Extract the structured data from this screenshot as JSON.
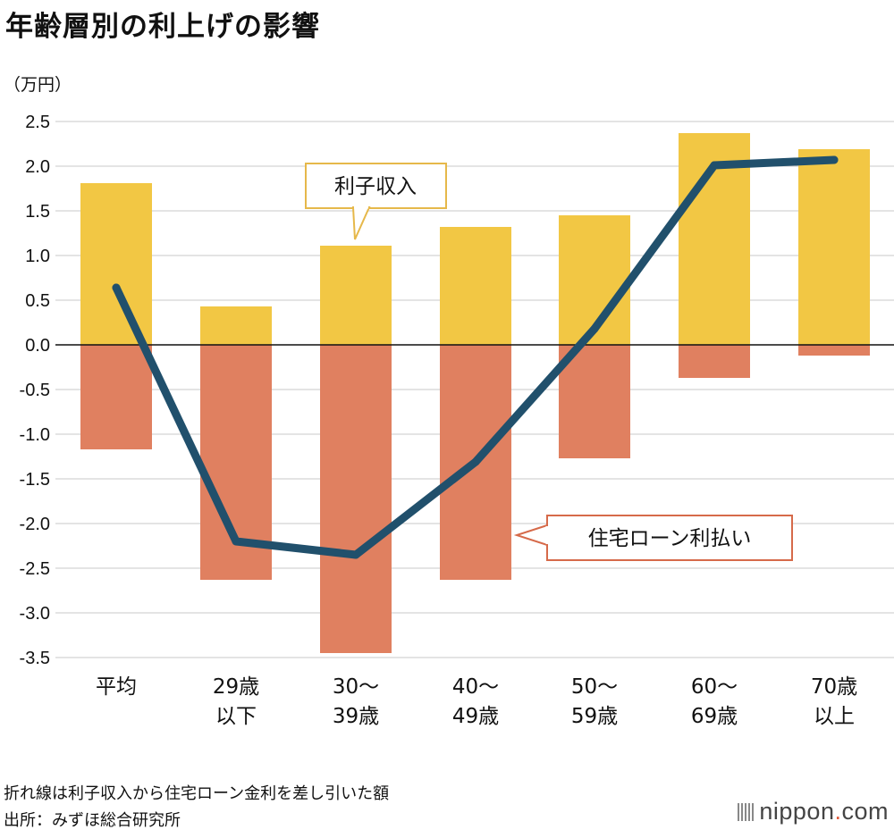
{
  "title": "年齢層別の利上げの影響",
  "unit_label": "（万円）",
  "notes": {
    "line1": "折れ線は利子収入から住宅ローン金利を差し引いた額",
    "line2": "出所：みずほ総合研究所"
  },
  "logo": {
    "main": "nippon",
    "dot": ".",
    "tail": "com"
  },
  "colors": {
    "income": "#f2c744",
    "mortgage": "#e08060",
    "line": "#21506c",
    "callout_income_border": "#e6b84a",
    "callout_mortgage_border": "#d66a4a"
  },
  "chart_data": {
    "type": "bar",
    "title": "年齢層別の利上げの影響",
    "ylabel": "（万円）",
    "ylim": [
      -3.5,
      2.5
    ],
    "yticks": [
      "2.5",
      "2.0",
      "1.5",
      "1.0",
      "0.5",
      "0.0",
      "-0.5",
      "-1.0",
      "-1.5",
      "-2.0",
      "-2.5",
      "-3.0",
      "-3.5"
    ],
    "categories": [
      [
        "平均",
        ""
      ],
      [
        "29歳",
        "以下"
      ],
      [
        "30～",
        "39歳"
      ],
      [
        "40～",
        "49歳"
      ],
      [
        "50～",
        "59歳"
      ],
      [
        "60～",
        "69歳"
      ],
      [
        "70歳",
        "以上"
      ]
    ],
    "series": [
      {
        "name": "利子収入",
        "kind": "bar",
        "values": [
          1.81,
          0.43,
          1.11,
          1.32,
          1.45,
          2.37,
          2.19
        ]
      },
      {
        "name": "住宅ローン利払い",
        "kind": "bar",
        "values": [
          -1.17,
          -2.63,
          -3.45,
          -2.63,
          -1.27,
          -0.37,
          -0.12
        ]
      },
      {
        "name": "",
        "kind": "line",
        "values": [
          0.64,
          -2.2,
          -2.35,
          -1.31,
          0.18,
          2.01,
          2.07
        ]
      }
    ],
    "callouts": {
      "income": "利子収入",
      "mortgage": "住宅ローン利払い"
    },
    "grid": true
  }
}
